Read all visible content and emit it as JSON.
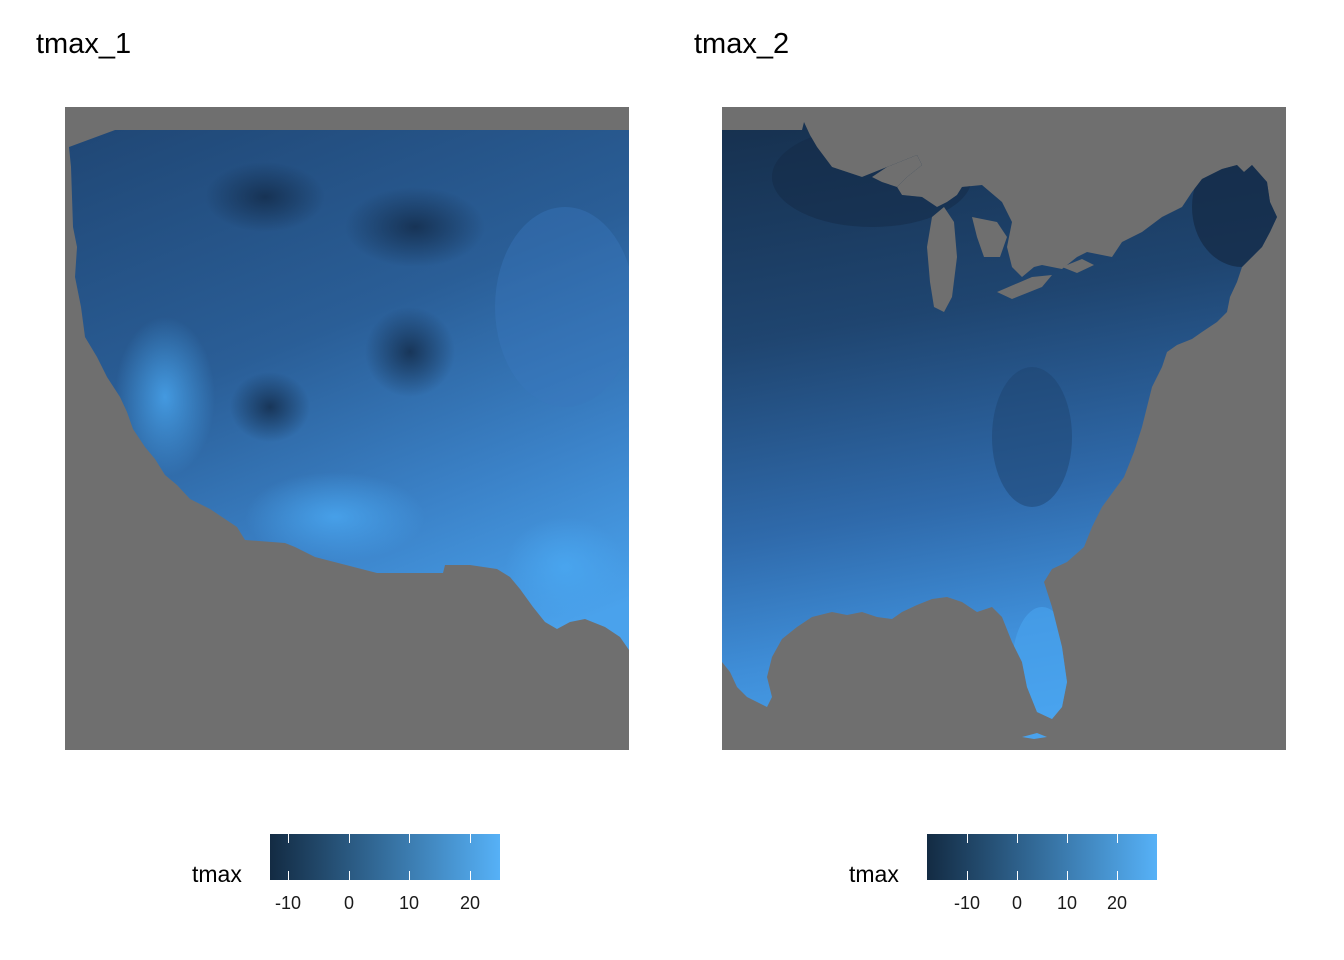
{
  "panels": [
    {
      "title": "tmax_1",
      "region": "western-us",
      "legend": {
        "title": "tmax",
        "range": [
          -13,
          25
        ],
        "ticks": [
          {
            "value": -10,
            "label": "-10"
          },
          {
            "value": 0,
            "label": "0"
          },
          {
            "value": 10,
            "label": "10"
          },
          {
            "value": 20,
            "label": "20"
          }
        ]
      }
    },
    {
      "title": "tmax_2",
      "region": "eastern-us",
      "legend": {
        "title": "tmax",
        "range": [
          -18,
          28
        ],
        "ticks": [
          {
            "value": -10,
            "label": "-10"
          },
          {
            "value": 0,
            "label": "0"
          },
          {
            "value": 10,
            "label": "10"
          },
          {
            "value": 20,
            "label": "20"
          }
        ]
      }
    }
  ],
  "colors": {
    "background_na": "#6f6f6f",
    "scale_low": "#132b43",
    "scale_high": "#56b1f7"
  }
}
